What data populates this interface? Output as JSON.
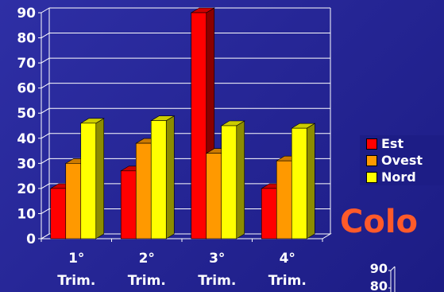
{
  "chart_data": {
    "type": "bar",
    "categories": [
      "1° Trim.",
      "2° Trim.",
      "3° Trim.",
      "4° Trim."
    ],
    "category_lines": [
      [
        "1°",
        "Trim."
      ],
      [
        "2°",
        "Trim."
      ],
      [
        "3°",
        "Trim."
      ],
      [
        "4°",
        "Trim."
      ]
    ],
    "series": [
      {
        "name": "Est",
        "color": "#ff0000",
        "values": [
          20,
          27,
          90,
          20
        ]
      },
      {
        "name": "Ovest",
        "color": "#ff9900",
        "values": [
          30,
          38,
          34,
          31
        ]
      },
      {
        "name": "Nord",
        "color": "#ffff00",
        "values": [
          46,
          47,
          45,
          44
        ]
      }
    ],
    "ylim": [
      0,
      90
    ],
    "yticks": [
      "0",
      "10",
      "20",
      "30",
      "40",
      "50",
      "60",
      "70",
      "80",
      "90"
    ],
    "grid": true,
    "legend_position": "right",
    "style": "3d-bar"
  },
  "overlay": {
    "title_fragment": "Colo",
    "title_color": "#ff5a2a",
    "mini_chart_ticks": [
      "90",
      "80"
    ]
  }
}
